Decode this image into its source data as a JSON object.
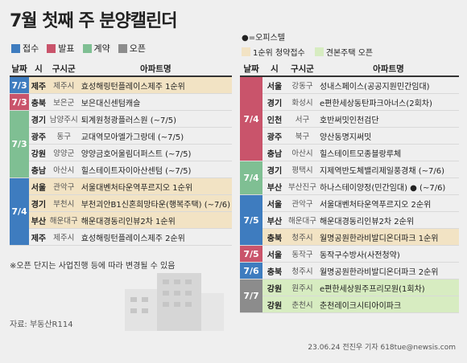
{
  "title_pre": "7월 첫째 주 ",
  "title_hl": "분양캘린더",
  "legend_a": [
    {
      "label": "접수",
      "color": "#3e7cbf"
    },
    {
      "label": "발표",
      "color": "#c9546b"
    },
    {
      "label": "계약",
      "color": "#7fbf93"
    },
    {
      "label": "오픈",
      "color": "#8c8c8c"
    }
  ],
  "legend_b_top": "●=오피스텔",
  "legend_b": [
    {
      "label": "1순위 청약접수",
      "color": "#f2e3c4"
    },
    {
      "label": "견본주택 오픈",
      "color": "#d7ecc1"
    }
  ],
  "headers": {
    "date": "날짜",
    "sido": "시",
    "gungu": "구시군",
    "apt": "아파트명"
  },
  "left_rows": [
    {
      "date": "7/3",
      "dcolor": "#3e7cbf",
      "span": 1,
      "sido": "제주",
      "gungu": "제주시",
      "apt": "효성해링턴플레이스제주 1순위",
      "bg": "#f2e3c4"
    },
    {
      "date": "7/3",
      "dcolor": "#c9546b",
      "span": 1,
      "sido": "충북",
      "gungu": "보은군",
      "apt": "보은대신센텀캐슬",
      "bg": ""
    },
    {
      "date": "7/3",
      "dcolor": "#7fbf93",
      "span": 4,
      "sido": "경기",
      "gungu": "남양주시",
      "apt": "퇴계원청광플러스원 (~7/5)",
      "bg": ""
    },
    {
      "date": "",
      "dcolor": "",
      "span": 0,
      "sido": "광주",
      "gungu": "동구",
      "apt": "교대역모아엘가그랑데 (~7/5)",
      "bg": ""
    },
    {
      "date": "",
      "dcolor": "",
      "span": 0,
      "sido": "강원",
      "gungu": "양양군",
      "apt": "양양금호어울림더퍼스트 (~7/5)",
      "bg": ""
    },
    {
      "date": "",
      "dcolor": "",
      "span": 0,
      "sido": "충남",
      "gungu": "아산시",
      "apt": "힐스테이트자이아산센텀 (~7/5)",
      "bg": ""
    },
    {
      "date": "7/4",
      "dcolor": "#3e7cbf",
      "span": 4,
      "sido": "서울",
      "gungu": "관악구",
      "apt": "서울대벤처타운역푸르지오 1순위",
      "bg": "#f2e3c4"
    },
    {
      "date": "",
      "dcolor": "",
      "span": 0,
      "sido": "경기",
      "gungu": "부천시",
      "apt": "부천괴안B1신혼희망타운(행복주택) (~7/6)",
      "bg": "#f2e3c4"
    },
    {
      "date": "",
      "dcolor": "",
      "span": 0,
      "sido": "부산",
      "gungu": "해운대구",
      "apt": "해운대경동리인뷰2차 1순위",
      "bg": "#f2e3c4"
    },
    {
      "date": "",
      "dcolor": "",
      "span": 0,
      "sido": "제주",
      "gungu": "제주시",
      "apt": "효성해링턴플레이스제주 2순위",
      "bg": ""
    }
  ],
  "right_rows": [
    {
      "date": "7/4",
      "dcolor": "#c9546b",
      "span": 5,
      "sido": "서울",
      "gungu": "강동구",
      "apt": "성내스페이스(공공지원민간임대)",
      "bg": ""
    },
    {
      "date": "",
      "dcolor": "",
      "span": 0,
      "sido": "경기",
      "gungu": "화성시",
      "apt": "e편한세상동탄파크아너스(2회차)",
      "bg": ""
    },
    {
      "date": "",
      "dcolor": "",
      "span": 0,
      "sido": "인천",
      "gungu": "서구",
      "apt": "호반써밋인천검단",
      "bg": ""
    },
    {
      "date": "",
      "dcolor": "",
      "span": 0,
      "sido": "광주",
      "gungu": "북구",
      "apt": "양산동명지써밋",
      "bg": ""
    },
    {
      "date": "",
      "dcolor": "",
      "span": 0,
      "sido": "충남",
      "gungu": "아산시",
      "apt": "힐스테이트모종블랑루체",
      "bg": ""
    },
    {
      "date": "7/4",
      "dcolor": "#7fbf93",
      "span": 2,
      "sido": "경기",
      "gungu": "평택시",
      "apt": "지제역반도체밸리제일풍경채 (~7/6)",
      "bg": ""
    },
    {
      "date": "",
      "dcolor": "",
      "span": 0,
      "sido": "부산",
      "gungu": "부산진구",
      "apt": "하나스테이양정(민간임대) ● (~7/6)",
      "bg": ""
    },
    {
      "date": "7/5",
      "dcolor": "#3e7cbf",
      "span": 3,
      "sido": "서울",
      "gungu": "관악구",
      "apt": "서울대벤처타운역푸르지오 2순위",
      "bg": ""
    },
    {
      "date": "",
      "dcolor": "",
      "span": 0,
      "sido": "부산",
      "gungu": "해운대구",
      "apt": "해운대경동리인뷰2차 2순위",
      "bg": ""
    },
    {
      "date": "",
      "dcolor": "",
      "span": 0,
      "sido": "충북",
      "gungu": "청주시",
      "apt": "월명공원한라비발디온더파크 1순위",
      "bg": "#f2e3c4"
    },
    {
      "date": "7/5",
      "dcolor": "#c9546b",
      "span": 1,
      "sido": "서울",
      "gungu": "동작구",
      "apt": "동작구수방사(사전청약)",
      "bg": ""
    },
    {
      "date": "7/6",
      "dcolor": "#3e7cbf",
      "span": 1,
      "sido": "충북",
      "gungu": "청주시",
      "apt": "월명공원한라비발디온더파크 2순위",
      "bg": ""
    },
    {
      "date": "7/7",
      "dcolor": "#8c8c8c",
      "span": 2,
      "sido": "강원",
      "gungu": "원주시",
      "apt": "e편한세상원주프리모원(1회차)",
      "bg": "#d7ecc1"
    },
    {
      "date": "",
      "dcolor": "",
      "span": 0,
      "sido": "강원",
      "gungu": "춘천시",
      "apt": "춘천레이크시티아이파크",
      "bg": "#d7ecc1"
    }
  ],
  "note": "※오픈 단지는 사업진행 등에 따라 변경될 수 있음",
  "source": "자료: 부동산R114",
  "credit": "23.06.24 전진우 기자 618tue@newsis.com"
}
